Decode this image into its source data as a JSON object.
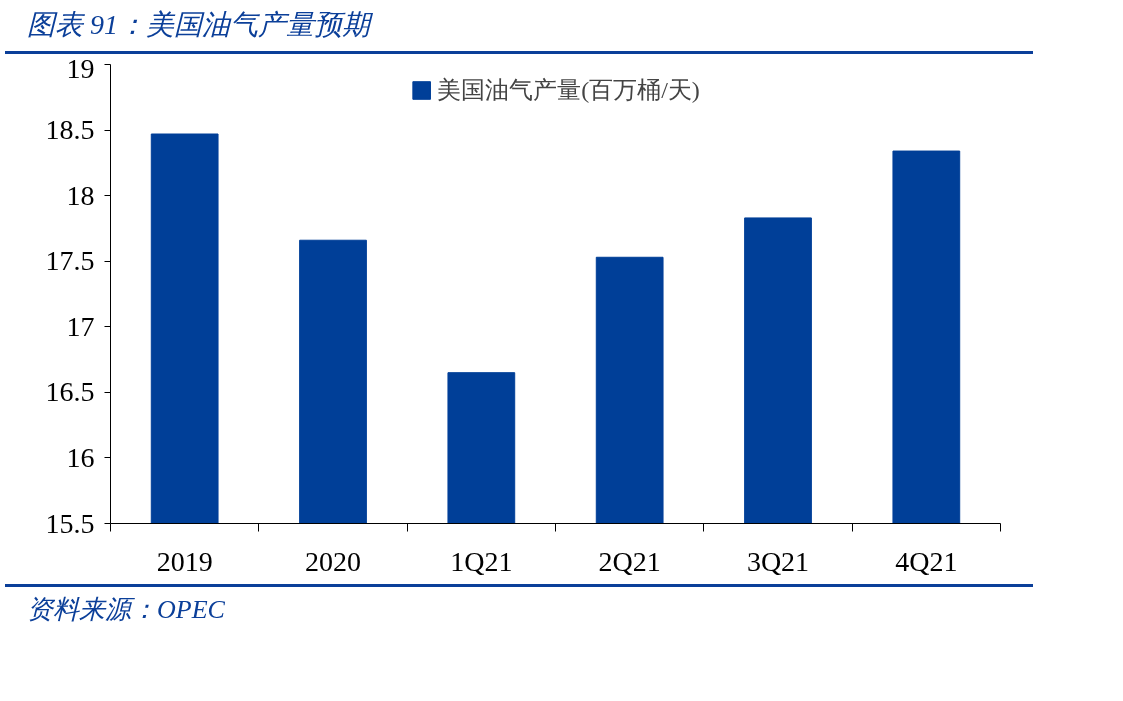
{
  "chart_data": {
    "type": "bar",
    "title": "图表 91：美国油气产量预期",
    "categories": [
      "2019",
      "2020",
      "1Q21",
      "2Q21",
      "3Q21",
      "4Q21"
    ],
    "series": [
      {
        "name": "美国油气产量(百万桶/天)",
        "color": "#003f98",
        "values": [
          18.47,
          17.66,
          16.65,
          17.53,
          17.83,
          18.34
        ]
      }
    ],
    "ylim": [
      15.5,
      19
    ],
    "yticks": [
      15.5,
      16,
      16.5,
      17,
      17.5,
      18,
      18.5,
      19
    ],
    "grid": false,
    "legend": "top",
    "annotations": [
      "资料来源：OPEC"
    ]
  }
}
